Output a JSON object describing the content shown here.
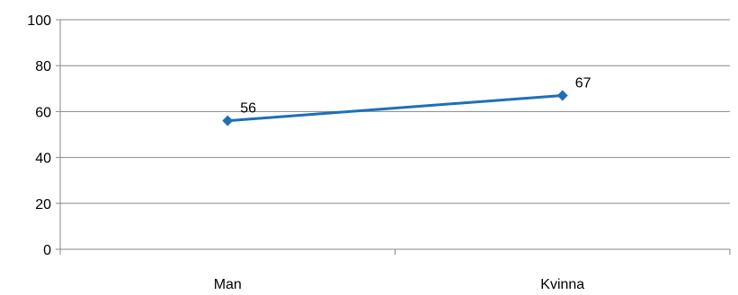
{
  "chart_data": {
    "type": "line",
    "categories": [
      "Man",
      "Kvinna"
    ],
    "series": [
      {
        "values": [
          56,
          67
        ],
        "color": "#1F6FB8",
        "marker": "diamond"
      }
    ],
    "ylim": [
      0,
      100
    ],
    "yticks": [
      "0",
      "20",
      "40",
      "60",
      "80",
      "100"
    ],
    "data_labels": [
      "56",
      "67"
    ],
    "grid": true,
    "legend": "none"
  }
}
